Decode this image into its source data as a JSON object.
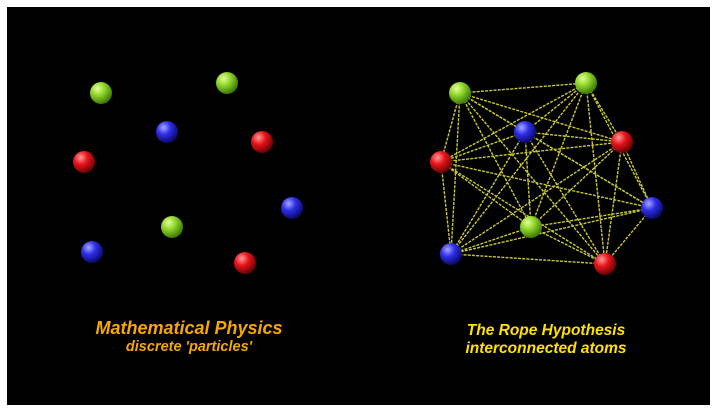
{
  "colors": {
    "background": "#000000",
    "frame": "#ffffff",
    "green": "#8fd62a",
    "blue": "#2e2ee8",
    "red": "#e8141a",
    "rope": "#c8c83a",
    "caption_left": "#f5a800",
    "caption_right": "#ffe100"
  },
  "left_panel": {
    "title": "Mathematical Physics",
    "subtitle": "discrete 'particles'",
    "particle_colors": [
      "green",
      "green",
      "blue",
      "red",
      "red",
      "blue",
      "green",
      "blue",
      "red"
    ]
  },
  "right_panel": {
    "title": "The Rope Hypothesis",
    "subtitle": "interconnected atoms",
    "atom_colors": [
      "green",
      "green",
      "blue",
      "red",
      "red",
      "blue",
      "green",
      "blue",
      "red"
    ],
    "connections": "every atom linked to every other atom"
  }
}
